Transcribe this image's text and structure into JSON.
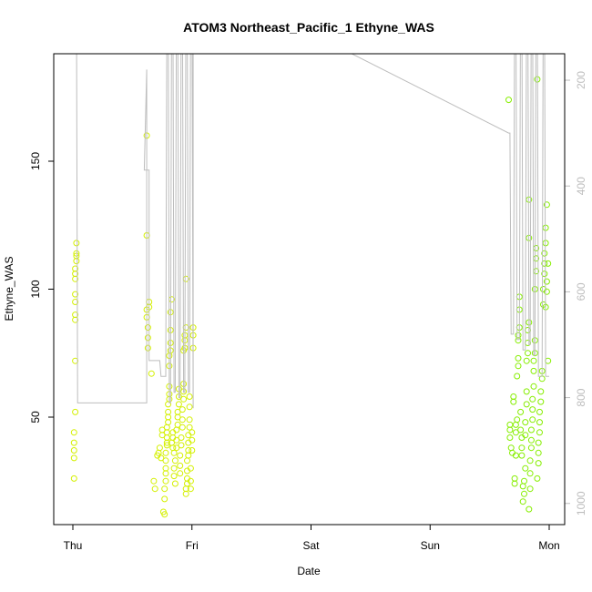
{
  "chart_data": {
    "type": "scatter",
    "title": "ATOM3 Northeast_Pacific_1 Ethyne_WAS",
    "xlabel": "Date",
    "ylabel": "Ethyne_WAS",
    "x_ticks": [
      "Thu",
      "Fri",
      "Sat",
      "Sun",
      "Mon"
    ],
    "x_range_days": [
      0,
      4
    ],
    "ylim": [
      8,
      192
    ],
    "y_ticks": [
      50,
      100,
      150
    ],
    "right_axis": {
      "label": "",
      "ticks": [
        200,
        400,
        600,
        800,
        1000
      ],
      "range": [
        150,
        1040
      ],
      "inverted": true
    },
    "grid": false,
    "legend": "none",
    "colors": {
      "early_points": "#d4f000",
      "late_points": "#86ee00",
      "altitude_line": "#bdbdbd",
      "frame": "#000000"
    },
    "series": [
      {
        "kind": "points",
        "color_key": "early_points",
        "points": [
          [
            0.01,
            26
          ],
          [
            0.01,
            34
          ],
          [
            0.01,
            37
          ],
          [
            0.01,
            40
          ],
          [
            0.01,
            44
          ],
          [
            0.02,
            52
          ],
          [
            0.02,
            72
          ],
          [
            0.02,
            88
          ],
          [
            0.02,
            90
          ],
          [
            0.02,
            95
          ],
          [
            0.02,
            98
          ],
          [
            0.02,
            104
          ],
          [
            0.02,
            106
          ],
          [
            0.02,
            108
          ],
          [
            0.03,
            111
          ],
          [
            0.03,
            113
          ],
          [
            0.03,
            114
          ],
          [
            0.03,
            118
          ],
          [
            0.62,
            160
          ],
          [
            0.62,
            121
          ],
          [
            0.62,
            92
          ],
          [
            0.62,
            89
          ],
          [
            0.63,
            85
          ],
          [
            0.63,
            81
          ],
          [
            0.63,
            77
          ],
          [
            0.64,
            93
          ],
          [
            0.64,
            95
          ],
          [
            0.66,
            67
          ],
          [
            0.68,
            25
          ],
          [
            0.69,
            22
          ],
          [
            0.71,
            35
          ],
          [
            0.72,
            36
          ],
          [
            0.73,
            38
          ],
          [
            0.74,
            34
          ],
          [
            0.75,
            43
          ],
          [
            0.75,
            45
          ],
          [
            0.76,
            13
          ],
          [
            0.77,
            12
          ],
          [
            0.77,
            18
          ],
          [
            0.77,
            22
          ],
          [
            0.78,
            25
          ],
          [
            0.78,
            28
          ],
          [
            0.78,
            30
          ],
          [
            0.78,
            33
          ],
          [
            0.78,
            36
          ],
          [
            0.79,
            39
          ],
          [
            0.79,
            40
          ],
          [
            0.79,
            42
          ],
          [
            0.79,
            44
          ],
          [
            0.79,
            46
          ],
          [
            0.8,
            48
          ],
          [
            0.8,
            50
          ],
          [
            0.8,
            52
          ],
          [
            0.8,
            55
          ],
          [
            0.81,
            57
          ],
          [
            0.81,
            59
          ],
          [
            0.81,
            62
          ],
          [
            0.81,
            70
          ],
          [
            0.81,
            74
          ],
          [
            0.82,
            76
          ],
          [
            0.82,
            79
          ],
          [
            0.82,
            84
          ],
          [
            0.82,
            91
          ],
          [
            0.83,
            96
          ],
          [
            0.83,
            40
          ],
          [
            0.84,
            38
          ],
          [
            0.84,
            42
          ],
          [
            0.84,
            44
          ],
          [
            0.85,
            36
          ],
          [
            0.85,
            30
          ],
          [
            0.85,
            27
          ],
          [
            0.86,
            24
          ],
          [
            0.86,
            33
          ],
          [
            0.87,
            38
          ],
          [
            0.87,
            41
          ],
          [
            0.87,
            45
          ],
          [
            0.88,
            47
          ],
          [
            0.88,
            50
          ],
          [
            0.88,
            52
          ],
          [
            0.89,
            55
          ],
          [
            0.89,
            58
          ],
          [
            0.89,
            61
          ],
          [
            0.9,
            28
          ],
          [
            0.9,
            31
          ],
          [
            0.9,
            35
          ],
          [
            0.91,
            39
          ],
          [
            0.91,
            42
          ],
          [
            0.92,
            46
          ],
          [
            0.92,
            49
          ],
          [
            0.92,
            53
          ],
          [
            0.93,
            57
          ],
          [
            0.93,
            60
          ],
          [
            0.93,
            63
          ],
          [
            0.93,
            76
          ],
          [
            0.94,
            77
          ],
          [
            0.94,
            80
          ],
          [
            0.94,
            82
          ],
          [
            0.95,
            85
          ],
          [
            0.95,
            104
          ],
          [
            0.95,
            20
          ],
          [
            0.95,
            22
          ],
          [
            0.96,
            24
          ],
          [
            0.96,
            26
          ],
          [
            0.96,
            29
          ],
          [
            0.96,
            33
          ],
          [
            0.97,
            35
          ],
          [
            0.97,
            37
          ],
          [
            0.97,
            40
          ],
          [
            0.97,
            43
          ],
          [
            0.98,
            46
          ],
          [
            0.98,
            49
          ],
          [
            0.98,
            54
          ],
          [
            0.98,
            58
          ],
          [
            0.99,
            22
          ],
          [
            0.99,
            25
          ],
          [
            0.99,
            30
          ],
          [
            1.0,
            37
          ],
          [
            1.0,
            41
          ],
          [
            1.0,
            44
          ],
          [
            1.01,
            77
          ],
          [
            1.01,
            82
          ],
          [
            1.01,
            85
          ]
        ]
      },
      {
        "kind": "points",
        "color_key": "late_points",
        "points": [
          [
            3.66,
            174
          ],
          [
            3.67,
            47
          ],
          [
            3.67,
            45
          ],
          [
            3.67,
            42
          ],
          [
            3.68,
            38
          ],
          [
            3.69,
            36
          ],
          [
            3.7,
            56
          ],
          [
            3.7,
            58
          ],
          [
            3.71,
            26
          ],
          [
            3.71,
            24
          ],
          [
            3.72,
            35
          ],
          [
            3.72,
            44
          ],
          [
            3.72,
            47
          ],
          [
            3.73,
            49
          ],
          [
            3.73,
            66
          ],
          [
            3.74,
            70
          ],
          [
            3.74,
            73
          ],
          [
            3.74,
            80
          ],
          [
            3.74,
            82
          ],
          [
            3.75,
            85
          ],
          [
            3.75,
            92
          ],
          [
            3.75,
            97
          ],
          [
            3.76,
            52
          ],
          [
            3.76,
            45
          ],
          [
            3.77,
            42
          ],
          [
            3.77,
            38
          ],
          [
            3.77,
            35
          ],
          [
            3.78,
            23
          ],
          [
            3.78,
            17
          ],
          [
            3.79,
            20
          ],
          [
            3.79,
            25
          ],
          [
            3.8,
            30
          ],
          [
            3.8,
            43
          ],
          [
            3.8,
            48
          ],
          [
            3.81,
            55
          ],
          [
            3.81,
            60
          ],
          [
            3.81,
            72
          ],
          [
            3.82,
            75
          ],
          [
            3.82,
            79
          ],
          [
            3.82,
            84
          ],
          [
            3.83,
            87
          ],
          [
            3.83,
            120
          ],
          [
            3.83,
            135
          ],
          [
            3.83,
            14
          ],
          [
            3.84,
            22
          ],
          [
            3.84,
            28
          ],
          [
            3.84,
            33
          ],
          [
            3.85,
            38
          ],
          [
            3.85,
            41
          ],
          [
            3.85,
            45
          ],
          [
            3.86,
            49
          ],
          [
            3.86,
            53
          ],
          [
            3.86,
            57
          ],
          [
            3.87,
            62
          ],
          [
            3.87,
            68
          ],
          [
            3.87,
            72
          ],
          [
            3.88,
            75
          ],
          [
            3.88,
            80
          ],
          [
            3.88,
            100
          ],
          [
            3.89,
            107
          ],
          [
            3.89,
            112
          ],
          [
            3.89,
            116
          ],
          [
            3.9,
            182
          ],
          [
            3.9,
            26
          ],
          [
            3.91,
            32
          ],
          [
            3.91,
            36
          ],
          [
            3.91,
            40
          ],
          [
            3.92,
            44
          ],
          [
            3.92,
            48
          ],
          [
            3.92,
            52
          ],
          [
            3.93,
            56
          ],
          [
            3.93,
            60
          ],
          [
            3.94,
            65
          ],
          [
            3.94,
            68
          ],
          [
            3.95,
            94
          ],
          [
            3.95,
            100
          ],
          [
            3.96,
            106
          ],
          [
            3.96,
            110
          ],
          [
            3.96,
            114
          ],
          [
            3.97,
            118
          ],
          [
            3.97,
            124
          ],
          [
            3.98,
            133
          ],
          [
            3.97,
            93
          ],
          [
            3.98,
            99
          ],
          [
            3.98,
            103
          ],
          [
            3.99,
            110
          ],
          [
            3.99,
            72
          ]
        ]
      },
      {
        "kind": "line",
        "color_key": "altitude_line",
        "y_axis": "right",
        "points": [
          [
            0.03,
            20
          ],
          [
            0.04,
            810
          ],
          [
            0.62,
            810
          ],
          [
            0.62,
            180
          ],
          [
            0.6,
            370
          ],
          [
            0.64,
            370
          ],
          [
            0.64,
            730
          ],
          [
            0.73,
            730
          ],
          [
            0.74,
            760
          ],
          [
            0.78,
            760
          ],
          [
            0.79,
            20
          ],
          [
            0.8,
            20
          ],
          [
            0.81,
            810
          ],
          [
            0.82,
            810
          ],
          [
            0.83,
            20
          ],
          [
            0.84,
            20
          ],
          [
            0.85,
            790
          ],
          [
            0.86,
            790
          ],
          [
            0.87,
            20
          ],
          [
            0.88,
            20
          ],
          [
            0.89,
            800
          ],
          [
            0.9,
            800
          ],
          [
            0.91,
            20
          ],
          [
            0.92,
            20
          ],
          [
            0.93,
            790
          ],
          [
            0.94,
            790
          ],
          [
            0.95,
            20
          ],
          [
            0.96,
            20
          ],
          [
            0.97,
            790
          ],
          [
            0.98,
            790
          ],
          [
            0.99,
            20
          ],
          [
            1.0,
            20
          ],
          [
            1.01,
            820
          ],
          [
            1.01,
            20
          ],
          [
            1.2,
            20
          ],
          [
            3.66,
            300
          ],
          [
            3.67,
            300
          ],
          [
            3.68,
            680
          ],
          [
            3.7,
            680
          ],
          [
            3.71,
            20
          ],
          [
            3.72,
            20
          ],
          [
            3.73,
            690
          ],
          [
            3.75,
            690
          ],
          [
            3.76,
            20
          ],
          [
            3.77,
            20
          ],
          [
            3.78,
            710
          ],
          [
            3.8,
            710
          ],
          [
            3.81,
            20
          ],
          [
            3.82,
            20
          ],
          [
            3.83,
            700
          ],
          [
            3.84,
            700
          ],
          [
            3.85,
            20
          ],
          [
            3.86,
            20
          ],
          [
            3.87,
            720
          ],
          [
            3.88,
            720
          ],
          [
            3.89,
            20
          ],
          [
            3.9,
            20
          ],
          [
            3.91,
            760
          ],
          [
            3.92,
            760
          ],
          [
            3.94,
            760
          ],
          [
            3.95,
            20
          ],
          [
            3.96,
            20
          ],
          [
            3.97,
            760
          ],
          [
            3.98,
            760
          ],
          [
            4.0,
            760
          ]
        ]
      }
    ]
  }
}
